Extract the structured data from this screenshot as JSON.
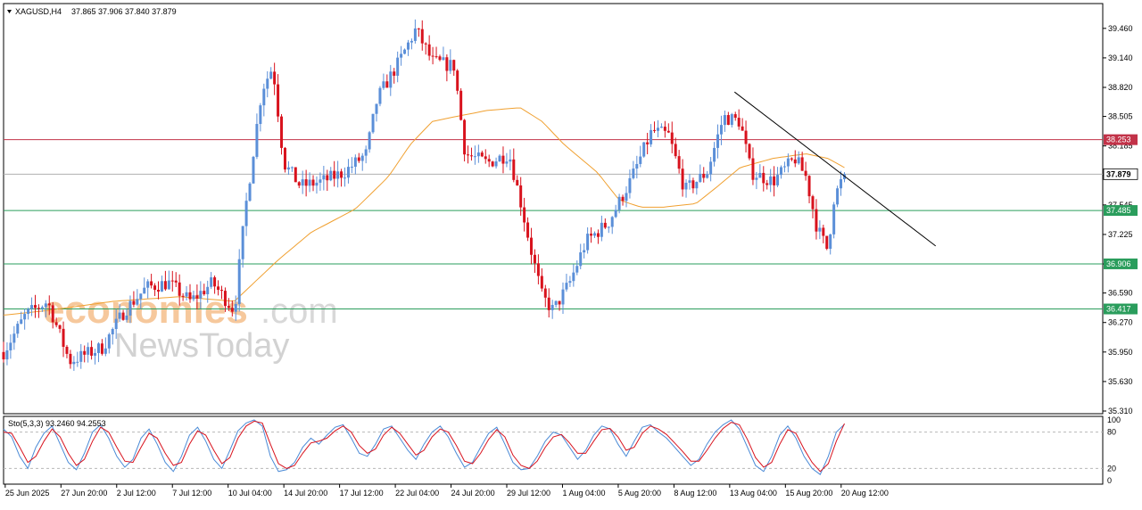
{
  "header": {
    "symbol": "XAGUSD,H4",
    "ohlc": "37.865 37.906 37.840 37.879"
  },
  "watermark": {
    "part1": "economies",
    "part2": ".com",
    "part3": "NewsToday"
  },
  "colors": {
    "bull": "#5b8fd8",
    "bear": "#d8121d",
    "ma": "#f0a030",
    "resistance_red": "#c23248",
    "support_green": "#2a9d5c",
    "trendline": "#000000",
    "stoch_main": "#4a8ad6",
    "stoch_signal": "#d8121d"
  },
  "chart_data": [
    {
      "type": "candlestick",
      "symbol": "XAGUSD",
      "timeframe": "H4",
      "ylim": [
        35.31,
        39.7
      ],
      "y_ticks": [
        "39.460",
        "39.140",
        "38.820",
        "38.505",
        "38.185",
        "37.865",
        "37.545",
        "37.225",
        "36.905",
        "36.590",
        "36.270",
        "35.950",
        "35.630",
        "35.310"
      ],
      "x_ticks": [
        "25 Jun 2025",
        "27 Jun 20:00",
        "2 Jul 12:00",
        "7 Jul 12:00",
        "10 Jul 04:00",
        "14 Jul 20:00",
        "17 Jul 12:00",
        "22 Jul 04:00",
        "24 Jul 20:00",
        "29 Jul 12:00",
        "1 Aug 04:00",
        "5 Aug 20:00",
        "8 Aug 12:00",
        "13 Aug 04:00",
        "15 Aug 20:00",
        "20 Aug 12:00"
      ],
      "current_price": {
        "value": 37.879,
        "label": "37.879"
      },
      "levels": [
        {
          "value": 38.253,
          "label": "38.253",
          "kind": "resistance"
        },
        {
          "value": 37.485,
          "label": "37.485",
          "kind": "support"
        },
        {
          "value": 36.906,
          "label": "36.906",
          "kind": "support"
        },
        {
          "value": 36.417,
          "label": "36.417",
          "kind": "support"
        }
      ],
      "trendline": {
        "from": [
          0.665,
          38.77
        ],
        "to": [
          0.848,
          37.1
        ]
      },
      "close_path": [
        [
          0,
          35.95
        ],
        [
          0.02,
          36.35
        ],
        [
          0.04,
          36.5
        ],
        [
          0.06,
          35.85
        ],
        [
          0.09,
          36.0
        ],
        [
          0.11,
          36.4
        ],
        [
          0.13,
          36.65
        ],
        [
          0.15,
          36.7
        ],
        [
          0.17,
          36.5
        ],
        [
          0.19,
          36.7
        ],
        [
          0.21,
          36.4
        ],
        [
          0.22,
          37.5
        ],
        [
          0.235,
          38.8
        ],
        [
          0.245,
          39.05
        ],
        [
          0.255,
          38.0
        ],
        [
          0.27,
          37.75
        ],
        [
          0.29,
          37.8
        ],
        [
          0.31,
          37.9
        ],
        [
          0.33,
          38.1
        ],
        [
          0.34,
          38.7
        ],
        [
          0.36,
          39.1
        ],
        [
          0.375,
          39.45
        ],
        [
          0.39,
          39.1
        ],
        [
          0.41,
          39.05
        ],
        [
          0.42,
          38.1
        ],
        [
          0.44,
          38.0
        ],
        [
          0.46,
          38.1
        ],
        [
          0.47,
          37.6
        ],
        [
          0.48,
          37.05
        ],
        [
          0.49,
          36.55
        ],
        [
          0.5,
          36.4
        ],
        [
          0.515,
          36.7
        ],
        [
          0.53,
          37.15
        ],
        [
          0.55,
          37.35
        ],
        [
          0.57,
          37.8
        ],
        [
          0.59,
          38.35
        ],
        [
          0.605,
          38.3
        ],
        [
          0.62,
          37.7
        ],
        [
          0.64,
          37.9
        ],
        [
          0.655,
          38.5
        ],
        [
          0.67,
          38.45
        ],
        [
          0.68,
          37.9
        ],
        [
          0.7,
          37.8
        ],
        [
          0.72,
          38.05
        ],
        [
          0.73,
          37.85
        ],
        [
          0.74,
          37.3
        ],
        [
          0.75,
          37.05
        ],
        [
          0.755,
          37.6
        ],
        [
          0.765,
          37.879
        ]
      ],
      "ma_path": [
        [
          0,
          36.35
        ],
        [
          0.04,
          36.4
        ],
        [
          0.1,
          36.5
        ],
        [
          0.16,
          36.55
        ],
        [
          0.21,
          36.5
        ],
        [
          0.25,
          36.95
        ],
        [
          0.28,
          37.25
        ],
        [
          0.32,
          37.5
        ],
        [
          0.35,
          37.85
        ],
        [
          0.37,
          38.2
        ],
        [
          0.39,
          38.45
        ],
        [
          0.41,
          38.5
        ],
        [
          0.44,
          38.57
        ],
        [
          0.47,
          38.6
        ],
        [
          0.49,
          38.45
        ],
        [
          0.51,
          38.2
        ],
        [
          0.54,
          37.9
        ],
        [
          0.56,
          37.6
        ],
        [
          0.58,
          37.52
        ],
        [
          0.6,
          37.52
        ],
        [
          0.63,
          37.56
        ],
        [
          0.65,
          37.75
        ],
        [
          0.67,
          37.95
        ],
        [
          0.7,
          38.05
        ],
        [
          0.73,
          38.1
        ],
        [
          0.75,
          38.05
        ],
        [
          0.765,
          37.95
        ]
      ]
    },
    {
      "type": "line",
      "name": "Sto(5,3,3) 93.2460 94.2553",
      "ylim": [
        0,
        100
      ],
      "y_ticks": [
        "100",
        "80",
        "20",
        "0"
      ],
      "levels": [
        80,
        20
      ],
      "series": [
        {
          "name": "main",
          "values": [
            85,
            72,
            40,
            20,
            55,
            78,
            90,
            60,
            30,
            18,
            45,
            80,
            92,
            70,
            40,
            22,
            35,
            70,
            85,
            60,
            30,
            15,
            40,
            75,
            88,
            65,
            35,
            20,
            50,
            82,
            95,
            100,
            90,
            40,
            15,
            18,
            30,
            55,
            70,
            60,
            75,
            88,
            92,
            70,
            45,
            40,
            60,
            85,
            90,
            70,
            50,
            35,
            60,
            80,
            90,
            72,
            45,
            22,
            30,
            55,
            78,
            88,
            60,
            30,
            18,
            20,
            40,
            65,
            80,
            75,
            55,
            35,
            50,
            75,
            90,
            85,
            60,
            40,
            65,
            88,
            92,
            80,
            70,
            55,
            40,
            25,
            35,
            60,
            80,
            92,
            100,
            85,
            55,
            25,
            15,
            40,
            75,
            90,
            70,
            40,
            20,
            10,
            40,
            80,
            93
          ]
        },
        {
          "name": "signal",
          "values": [
            80,
            78,
            55,
            30,
            40,
            65,
            85,
            72,
            45,
            25,
            35,
            65,
            88,
            80,
            55,
            32,
            30,
            55,
            78,
            70,
            45,
            25,
            30,
            60,
            82,
            75,
            50,
            28,
            38,
            70,
            90,
            98,
            95,
            60,
            28,
            20,
            25,
            45,
            62,
            65,
            70,
            82,
            90,
            80,
            58,
            45,
            52,
            75,
            88,
            78,
            60,
            42,
            50,
            72,
            85,
            80,
            58,
            32,
            28,
            45,
            68,
            84,
            72,
            42,
            25,
            20,
            32,
            55,
            72,
            76,
            62,
            45,
            45,
            65,
            84,
            86,
            72,
            50,
            55,
            78,
            90,
            85,
            76,
            62,
            48,
            32,
            32,
            50,
            70,
            86,
            96,
            92,
            68,
            38,
            22,
            30,
            60,
            84,
            78,
            52,
            30,
            15,
            28,
            65,
            94
          ]
        }
      ]
    }
  ]
}
